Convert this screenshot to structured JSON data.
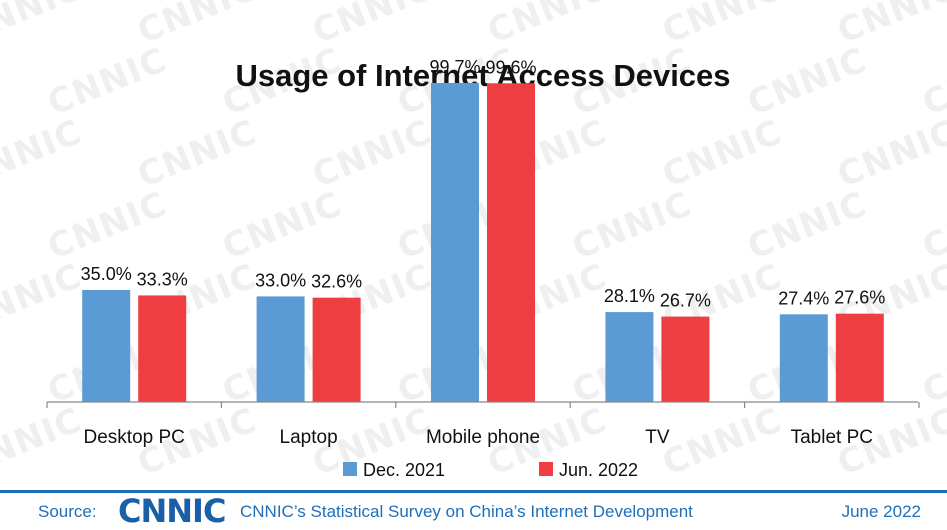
{
  "watermark": "CNNIC",
  "chart_data": {
    "type": "bar",
    "title": "Usage of Internet Access Devices",
    "categories": [
      "Desktop PC",
      "Laptop",
      "Mobile phone",
      "TV",
      "Tablet PC"
    ],
    "series": [
      {
        "name": "Dec. 2021",
        "values": [
          35.0,
          33.0,
          99.7,
          28.1,
          27.4
        ],
        "labels": [
          "35.0%",
          "33.0%",
          "99.7%",
          "28.1%",
          "27.4%"
        ],
        "color": "#5b9bd5"
      },
      {
        "name": "Jun. 2022",
        "values": [
          33.3,
          32.6,
          99.6,
          26.7,
          27.6
        ],
        "labels": [
          "33.3%",
          "32.6%",
          "99.6%",
          "26.7%",
          "27.6%"
        ],
        "color": "#ef3e42"
      }
    ],
    "ylim": [
      0,
      100
    ],
    "grid": false,
    "legend": "bottom"
  },
  "footer": {
    "source_label": "Source:",
    "logo_text": "CNNIC",
    "survey": "CNNIC’s Statistical Survey on China’s Internet Development",
    "date": "June 2022"
  }
}
